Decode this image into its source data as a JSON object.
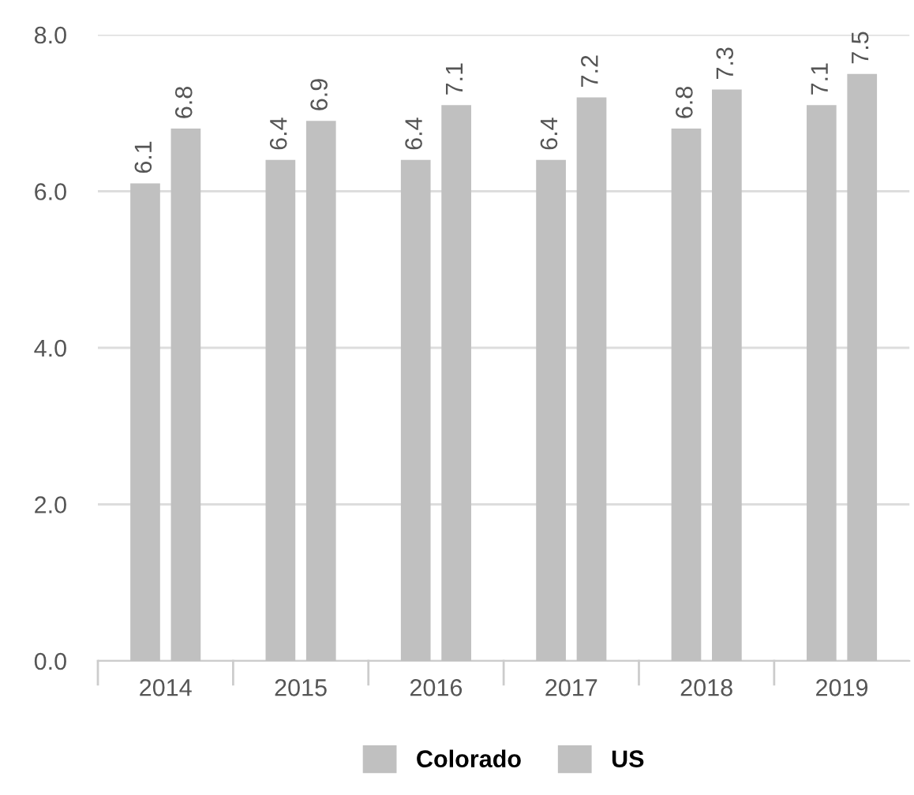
{
  "chart_data": {
    "type": "bar",
    "categories": [
      "2014",
      "2015",
      "2016",
      "2017",
      "2018",
      "2019"
    ],
    "series": [
      {
        "name": "Colorado",
        "color": "#c0c0c0",
        "values": [
          6.1,
          6.4,
          6.4,
          6.4,
          6.8,
          7.1
        ]
      },
      {
        "name": "US",
        "color": "#c0c0c0",
        "values": [
          6.8,
          6.9,
          7.1,
          7.2,
          7.3,
          7.5
        ]
      }
    ],
    "ylim": [
      0,
      8
    ],
    "yticks": [
      {
        "value": 0,
        "label": "0.0"
      },
      {
        "value": 2,
        "label": "2.0"
      },
      {
        "value": 4,
        "label": "4.0"
      },
      {
        "value": 6,
        "label": "6.0"
      },
      {
        "value": 8,
        "label": "8.0"
      }
    ],
    "grid": "y",
    "legend": "bottom",
    "data_labels": true
  }
}
